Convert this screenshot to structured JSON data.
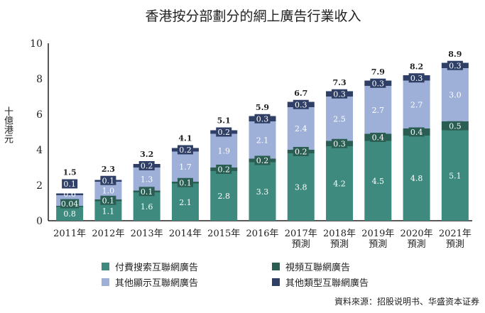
{
  "chart_data": {
    "type": "bar",
    "stacked": true,
    "title": "香港按分部劃分的網上廣告行業收入",
    "ylabel": "十億港元",
    "xlabel": "",
    "ylim": [
      0,
      10
    ],
    "yticks": [
      0,
      2,
      4,
      6,
      8,
      10
    ],
    "grid": false,
    "legend_position": "bottom",
    "categories": [
      [
        "2011年"
      ],
      [
        "2012年"
      ],
      [
        "2013年"
      ],
      [
        "2014年"
      ],
      [
        "2015年"
      ],
      [
        "2016年"
      ],
      [
        "2017年",
        "預測"
      ],
      [
        "2018年",
        "預測"
      ],
      [
        "2019年",
        "預測"
      ],
      [
        "2020年",
        "預測"
      ],
      [
        "2021年",
        "預測"
      ]
    ],
    "series": [
      {
        "name": "付費搜索互聯網廣告",
        "color": "#3f8a7e",
        "values": [
          0.8,
          1.1,
          1.6,
          2.1,
          2.8,
          3.3,
          3.8,
          4.2,
          4.5,
          4.8,
          5.1
        ]
      },
      {
        "name": "視頻互聯網廣告",
        "color": "#2b5e52",
        "values": [
          0.04,
          0.1,
          0.1,
          0.1,
          0.2,
          0.2,
          0.2,
          0.3,
          0.4,
          0.4,
          0.5
        ]
      },
      {
        "name": "其他顯示互聯網廣告",
        "color": "#9eb0d8",
        "values": [
          0.6,
          1.0,
          1.3,
          1.7,
          1.9,
          2.1,
          2.4,
          2.5,
          2.7,
          2.7,
          3.0
        ]
      },
      {
        "name": "其他類型互聯網廣告",
        "color": "#2f3f66",
        "values": [
          0.1,
          0.1,
          0.2,
          0.2,
          0.2,
          0.3,
          0.3,
          0.3,
          0.3,
          0.3,
          0.3
        ]
      }
    ],
    "value_labels": [
      [
        "0.8",
        "1.1",
        "1.6",
        "2.1",
        "2.8",
        "3.3",
        "3.8",
        "4.2",
        "4.5",
        "4.8",
        "5.1"
      ],
      [
        "0.04",
        "0.1",
        "0.1",
        "0.1",
        "0.2",
        "0.2",
        "0.2",
        "0.3",
        "0.4",
        "0.4",
        "0.5"
      ],
      [
        "0.6",
        "1.0",
        "1.3",
        "1.7",
        "1.9",
        "2.1",
        "2.4",
        "2.5",
        "2.7",
        "2.7",
        "3.0"
      ],
      [
        "0.1",
        "0.1",
        "0.2",
        "0.2",
        "0.2",
        "0.3",
        "0.3",
        "0.3",
        "0.3",
        "0.3",
        "0.3"
      ]
    ],
    "totals": [
      "1.5",
      "2.3",
      "3.2",
      "4.1",
      "5.1",
      "5.9",
      "6.7",
      "7.3",
      "7.9",
      "8.2",
      "8.9"
    ]
  },
  "source": "資料來源：招股说明书、华盛资本证券"
}
